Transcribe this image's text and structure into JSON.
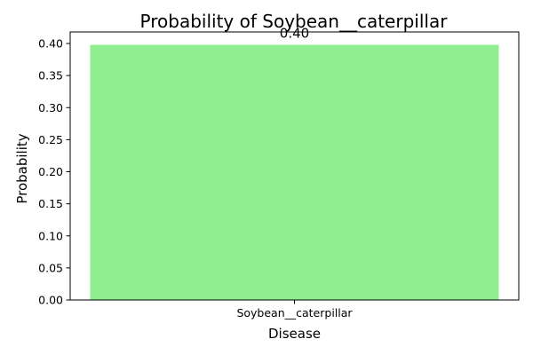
{
  "chart_data": {
    "type": "bar",
    "title": "Probability of Soybean__caterpillar",
    "xlabel": "Disease",
    "ylabel": "Probability",
    "categories": [
      "Soybean__caterpillar"
    ],
    "values": [
      0.398
    ],
    "data_labels": [
      "0.40"
    ],
    "ylim": [
      0,
      0.418
    ],
    "yticks": [
      0.0,
      0.05,
      0.1,
      0.15,
      0.2,
      0.25,
      0.3,
      0.35,
      0.4
    ],
    "ytick_labels": [
      "0.00",
      "0.05",
      "0.10",
      "0.15",
      "0.20",
      "0.25",
      "0.30",
      "0.35",
      "0.40"
    ],
    "bar_color": "#90ee90",
    "grid": false
  }
}
